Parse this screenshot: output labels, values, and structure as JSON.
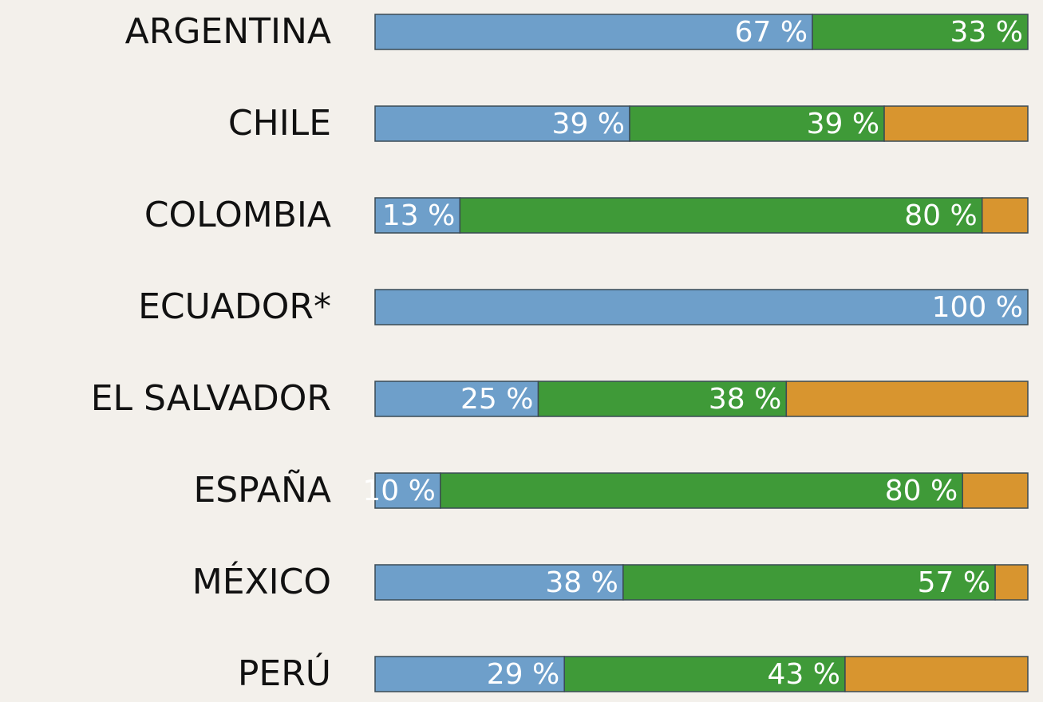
{
  "chart_data": {
    "type": "stacked-bar",
    "orientation": "horizontal",
    "categories": [
      "ARGENTINA",
      "CHILE",
      "COLOMBIA",
      "ECUADOR*",
      "EL SALVADOR",
      "ESPAÑA",
      "MÉXICO",
      "PERÚ"
    ],
    "xlim": [
      0,
      100
    ],
    "series": [
      {
        "color": "#6e9fca",
        "values": [
          67,
          39,
          13,
          100,
          25,
          10,
          38,
          29
        ],
        "value_labels": [
          "67 %",
          "39 %",
          "13 %",
          "100 %",
          "25 %",
          "10 %",
          "38 %",
          "29 %"
        ]
      },
      {
        "color": "#3f9a38",
        "values": [
          33,
          39,
          80,
          0,
          38,
          80,
          57,
          43
        ],
        "value_labels": [
          "33 %",
          "39 %",
          "80 %",
          null,
          "38 %",
          "80 %",
          "57 %",
          "43 %"
        ]
      },
      {
        "color": "#d8952f",
        "values": [
          0,
          22,
          7,
          0,
          37,
          10,
          5,
          28
        ]
      }
    ]
  }
}
